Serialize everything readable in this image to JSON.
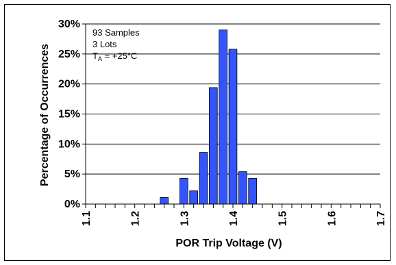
{
  "chart_data": {
    "type": "bar",
    "title": "",
    "xlabel": "POR Trip Voltage (V)",
    "ylabel": "Percentage of Occurrences",
    "x_tick_labels": [
      "1.1",
      "1.2",
      "1.3",
      "1.4",
      "1.5",
      "1.6",
      "1.7"
    ],
    "y_tick_labels": [
      "0%",
      "5%",
      "10%",
      "15%",
      "20%",
      "25%",
      "30%"
    ],
    "xlim": [
      1.1,
      1.7
    ],
    "ylim": [
      0,
      30
    ],
    "x_minor_step": 0.02,
    "grid": "horizontal",
    "legend": "none",
    "bar_color": "#3355ff",
    "annotations": [
      "93 Samples",
      "3 Lots",
      "T",
      "A",
      " = +25°C"
    ],
    "series": [
      {
        "x": [
          1.26,
          1.3,
          1.32,
          1.34,
          1.36,
          1.38,
          1.4,
          1.42,
          1.44
        ],
        "values": [
          1.1,
          4.3,
          2.2,
          8.6,
          19.4,
          29.0,
          25.8,
          5.4,
          4.3
        ]
      }
    ]
  }
}
